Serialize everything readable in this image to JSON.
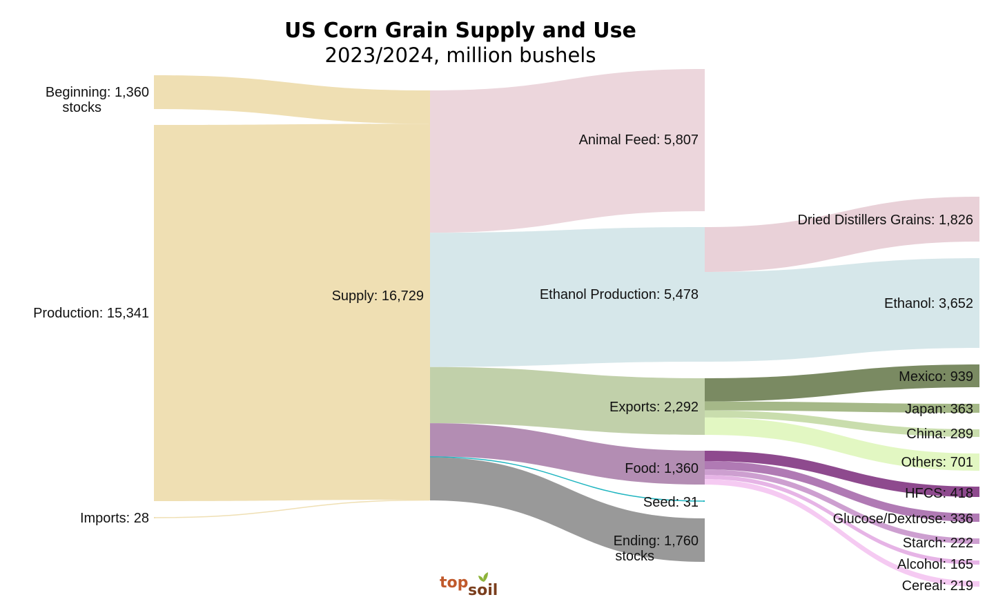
{
  "chart_data": {
    "type": "sankey",
    "title": "US Corn Grain Supply and Use",
    "subtitle": "2023/2024, million bushels",
    "units": "million bushels",
    "nodes": [
      {
        "id": "beginning",
        "label": "Beginning: 1,360",
        "label2": "stocks",
        "value": 1360,
        "color": "#efdfb3"
      },
      {
        "id": "production",
        "label": "Production: 15,341",
        "value": 15341,
        "color": "#efdfb3"
      },
      {
        "id": "imports",
        "label": "Imports: 28",
        "value": 28,
        "color": "#efdfb3"
      },
      {
        "id": "supply",
        "label": "Supply: 16,729",
        "value": 16729,
        "color": "#efdfb3"
      },
      {
        "id": "animal_feed",
        "label": "Animal Feed: 5,807",
        "value": 5807,
        "color": "#ecd6dc"
      },
      {
        "id": "ethanol_production",
        "label": "Ethanol Production: 5,478",
        "value": 5478,
        "color": "#d6e7ea"
      },
      {
        "id": "exports",
        "label": "Exports: 2,292",
        "value": 2292,
        "color": "#c1d0aa"
      },
      {
        "id": "food",
        "label": "Food: 1,360",
        "value": 1360,
        "color": "#b38db3"
      },
      {
        "id": "seed",
        "label": "Seed: 31",
        "value": 31,
        "color": "#1fb5c0"
      },
      {
        "id": "ending",
        "label": "Ending: 1,760",
        "label2": "stocks",
        "value": 1760,
        "color": "#999999"
      },
      {
        "id": "ddg",
        "label": "Dried Distillers Grains: 1,826",
        "value": 1826,
        "color": "#e9d1d8"
      },
      {
        "id": "ethanol",
        "label": "Ethanol: 3,652",
        "value": 3652,
        "color": "#d6e7ea"
      },
      {
        "id": "mexico",
        "label": "Mexico: 939",
        "value": 939,
        "color": "#7a8a62"
      },
      {
        "id": "japan",
        "label": "Japan: 363",
        "value": 363,
        "color": "#a5b888"
      },
      {
        "id": "china",
        "label": "China: 289",
        "value": 289,
        "color": "#c9ddad"
      },
      {
        "id": "others",
        "label": "Others: 701",
        "value": 701,
        "color": "#e2f7c2"
      },
      {
        "id": "hfcs",
        "label": "HFCS: 418",
        "value": 418,
        "color": "#8e4a8e"
      },
      {
        "id": "glucose",
        "label": "Glucose/Dextrose: 336",
        "value": 336,
        "color": "#b07ab4"
      },
      {
        "id": "starch",
        "label": "Starch: 222",
        "value": 222,
        "color": "#cd9fd0"
      },
      {
        "id": "alcohol",
        "label": "Alcohol: 165",
        "value": 165,
        "color": "#e6b4e6"
      },
      {
        "id": "cereal",
        "label": "Cereal: 219",
        "value": 219,
        "color": "#f5caf2"
      }
    ],
    "links": [
      {
        "source": "beginning",
        "target": "supply",
        "value": 1360
      },
      {
        "source": "production",
        "target": "supply",
        "value": 15341
      },
      {
        "source": "imports",
        "target": "supply",
        "value": 28
      },
      {
        "source": "supply",
        "target": "animal_feed",
        "value": 5807
      },
      {
        "source": "supply",
        "target": "ethanol_production",
        "value": 5478
      },
      {
        "source": "supply",
        "target": "exports",
        "value": 2292
      },
      {
        "source": "supply",
        "target": "food",
        "value": 1360
      },
      {
        "source": "supply",
        "target": "seed",
        "value": 31
      },
      {
        "source": "supply",
        "target": "ending",
        "value": 1760
      },
      {
        "source": "ethanol_production",
        "target": "ddg",
        "value": 1826
      },
      {
        "source": "ethanol_production",
        "target": "ethanol",
        "value": 3652
      },
      {
        "source": "exports",
        "target": "mexico",
        "value": 939
      },
      {
        "source": "exports",
        "target": "japan",
        "value": 363
      },
      {
        "source": "exports",
        "target": "china",
        "value": 289
      },
      {
        "source": "exports",
        "target": "others",
        "value": 701
      },
      {
        "source": "food",
        "target": "hfcs",
        "value": 418
      },
      {
        "source": "food",
        "target": "glucose",
        "value": 336
      },
      {
        "source": "food",
        "target": "starch",
        "value": 222
      },
      {
        "source": "food",
        "target": "alcohol",
        "value": 165
      },
      {
        "source": "food",
        "target": "cereal",
        "value": 219
      }
    ]
  },
  "logo": {
    "part1": "top",
    "part2": "soil"
  }
}
